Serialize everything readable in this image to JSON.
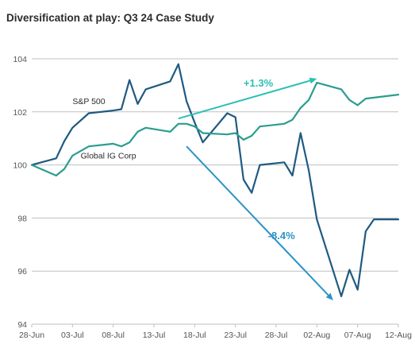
{
  "chart_data": {
    "type": "line",
    "title": "Diversification at play: Q3 24 Case Study",
    "xlabel": "",
    "ylabel": "",
    "ylim": [
      94,
      104
    ],
    "yticks": [
      94,
      96,
      98,
      100,
      102,
      104
    ],
    "xlim": [
      "2024-06-28",
      "2024-08-12"
    ],
    "xticks": [
      "28-Jun",
      "03-Jul",
      "08-Jul",
      "13-Jul",
      "18-Jul",
      "23-Jul",
      "28-Jul",
      "02-Aug",
      "07-Aug",
      "12-Aug"
    ],
    "xtick_dates": [
      "2024-06-28",
      "2024-07-03",
      "2024-07-08",
      "2024-07-13",
      "2024-07-18",
      "2024-07-23",
      "2024-07-28",
      "2024-08-02",
      "2024-08-07",
      "2024-08-12"
    ],
    "grid": true,
    "series": [
      {
        "name": "S&P 500",
        "color": "#1f5a82",
        "points": [
          [
            "2024-06-28",
            100.0
          ],
          [
            "2024-07-01",
            100.25
          ],
          [
            "2024-07-02",
            100.9
          ],
          [
            "2024-07-03",
            101.4
          ],
          [
            "2024-07-05",
            101.95
          ],
          [
            "2024-07-08",
            102.05
          ],
          [
            "2024-07-09",
            102.1
          ],
          [
            "2024-07-10",
            103.2
          ],
          [
            "2024-07-11",
            102.3
          ],
          [
            "2024-07-12",
            102.85
          ],
          [
            "2024-07-15",
            103.15
          ],
          [
            "2024-07-16",
            103.8
          ],
          [
            "2024-07-17",
            102.4
          ],
          [
            "2024-07-18",
            101.6
          ],
          [
            "2024-07-19",
            100.85
          ],
          [
            "2024-07-22",
            101.95
          ],
          [
            "2024-07-23",
            101.8
          ],
          [
            "2024-07-24",
            99.45
          ],
          [
            "2024-07-25",
            98.95
          ],
          [
            "2024-07-26",
            100.0
          ],
          [
            "2024-07-29",
            100.1
          ],
          [
            "2024-07-30",
            99.6
          ],
          [
            "2024-07-31",
            101.2
          ],
          [
            "2024-08-01",
            99.8
          ],
          [
            "2024-08-02",
            97.95
          ],
          [
            "2024-08-05",
            95.05
          ],
          [
            "2024-08-06",
            96.05
          ],
          [
            "2024-08-07",
            95.3
          ],
          [
            "2024-08-08",
            97.5
          ],
          [
            "2024-08-09",
            97.95
          ],
          [
            "2024-08-12",
            97.95
          ]
        ]
      },
      {
        "name": "Global IG Corp",
        "color": "#2a9d8f",
        "points": [
          [
            "2024-06-28",
            100.0
          ],
          [
            "2024-07-01",
            99.6
          ],
          [
            "2024-07-02",
            99.85
          ],
          [
            "2024-07-03",
            100.35
          ],
          [
            "2024-07-05",
            100.7
          ],
          [
            "2024-07-08",
            100.8
          ],
          [
            "2024-07-09",
            100.7
          ],
          [
            "2024-07-10",
            100.85
          ],
          [
            "2024-07-11",
            101.25
          ],
          [
            "2024-07-12",
            101.4
          ],
          [
            "2024-07-15",
            101.25
          ],
          [
            "2024-07-16",
            101.55
          ],
          [
            "2024-07-17",
            101.55
          ],
          [
            "2024-07-18",
            101.45
          ],
          [
            "2024-07-19",
            101.2
          ],
          [
            "2024-07-22",
            101.15
          ],
          [
            "2024-07-23",
            101.2
          ],
          [
            "2024-07-24",
            100.95
          ],
          [
            "2024-07-25",
            101.1
          ],
          [
            "2024-07-26",
            101.45
          ],
          [
            "2024-07-29",
            101.55
          ],
          [
            "2024-07-30",
            101.7
          ],
          [
            "2024-07-31",
            102.15
          ],
          [
            "2024-08-01",
            102.45
          ],
          [
            "2024-08-02",
            103.1
          ],
          [
            "2024-08-05",
            102.85
          ],
          [
            "2024-08-06",
            102.45
          ],
          [
            "2024-08-07",
            102.25
          ],
          [
            "2024-08-08",
            102.5
          ],
          [
            "2024-08-12",
            102.65
          ]
        ]
      }
    ],
    "labels": [
      {
        "text": "S&P 500",
        "date": "2024-07-03",
        "value": 102.3,
        "color": "#2b2b2b"
      },
      {
        "text": "Global IG Corp",
        "date": "2024-07-04",
        "value": 100.25,
        "color": "#2b2b2b"
      }
    ],
    "annotations": [
      {
        "text": "+1.3%",
        "color": "#2bbfb6",
        "from": [
          "2024-07-16",
          101.75
        ],
        "to": [
          "2024-08-02",
          103.25
        ],
        "label_at": [
          "2024-07-24",
          102.95
        ]
      },
      {
        "text": "-8.4%",
        "color": "#2b93c8",
        "from": [
          "2024-07-17",
          100.7
        ],
        "to": [
          "2024-08-04",
          94.9
        ],
        "label_at": [
          "2024-07-27",
          97.2
        ]
      }
    ]
  }
}
